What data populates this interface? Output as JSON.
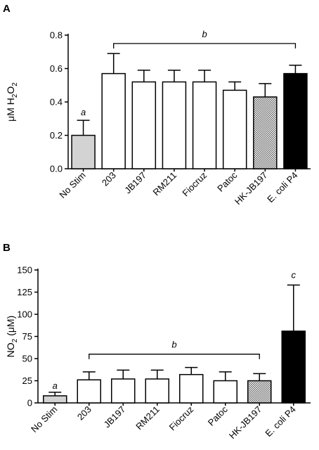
{
  "panels": [
    {
      "letter": "A",
      "ylabel_main": "μM H",
      "ylabel_sub": "2",
      "ylabel_tail": "O",
      "ylabel_sub2": "2"
    },
    {
      "letter": "B",
      "ylabel_main": "NO",
      "ylabel_sub": "2",
      "ylabel_tail": " (μM)",
      "ylabel_sub2": ""
    }
  ],
  "chart_data": [
    {
      "type": "bar",
      "panel": "A",
      "categories": [
        "No Stim",
        "203",
        "JB197",
        "RM211",
        "Fiocruz",
        "Patoc",
        "HK-JB197",
        "E. coli P4"
      ],
      "values": [
        0.2,
        0.57,
        0.52,
        0.52,
        0.52,
        0.47,
        0.43,
        0.57
      ],
      "errors": [
        0.09,
        0.12,
        0.07,
        0.07,
        0.07,
        0.05,
        0.08,
        0.05
      ],
      "fills": [
        "#d3d3d3",
        "#ffffff",
        "#ffffff",
        "#ffffff",
        "#ffffff",
        "#ffffff",
        "hatch",
        "#000000"
      ],
      "ylim": [
        0,
        0.8
      ],
      "yticks": [
        "0.0",
        "0.2",
        "0.4",
        "0.6",
        "0.8"
      ],
      "ytick_values": [
        0,
        0.2,
        0.4,
        0.6,
        0.8
      ],
      "annotations": [
        {
          "text": "a",
          "category_index": 0,
          "y": 0.32
        }
      ],
      "brackets": [
        {
          "text": "b",
          "from": 1,
          "to": 7,
          "y": 0.75
        }
      ]
    },
    {
      "type": "bar",
      "panel": "B",
      "categories": [
        "No Stim",
        "203",
        "JB197",
        "RM211",
        "Fiocruz",
        "Patoc",
        "HK-JB197",
        "E. coli P4"
      ],
      "values": [
        8,
        26,
        27,
        27,
        32,
        25,
        25,
        81
      ],
      "errors": [
        4,
        9,
        10,
        10,
        8,
        10,
        8,
        52
      ],
      "fills": [
        "#d3d3d3",
        "#ffffff",
        "#ffffff",
        "#ffffff",
        "#ffffff",
        "#ffffff",
        "hatch",
        "#000000"
      ],
      "ylim": [
        0,
        150
      ],
      "yticks": [
        "0",
        "25",
        "50",
        "75",
        "100",
        "125",
        "150"
      ],
      "ytick_values": [
        0,
        25,
        50,
        75,
        100,
        125,
        150
      ],
      "annotations": [
        {
          "text": "a",
          "category_index": 0,
          "y": 16
        },
        {
          "text": "c",
          "category_index": 7,
          "y": 141
        }
      ],
      "brackets": [
        {
          "text": "b",
          "from": 1,
          "to": 6,
          "y": 55
        }
      ]
    }
  ]
}
